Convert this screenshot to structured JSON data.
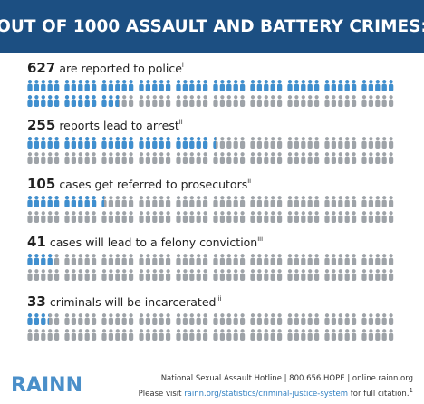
{
  "chart_data": {
    "type": "pictograph",
    "title": "OUT OF 1000 ASSAULT AND BATTERY CRIMES:",
    "total": 1000,
    "categories": [
      "are reported to police",
      "reports lead to arrest",
      "cases get referred to prosecutors",
      "cases will lead to a felony conviction",
      "criminals will be incarcerated"
    ],
    "values": [
      627,
      255,
      105,
      41,
      33
    ],
    "notes": [
      "i",
      "ii",
      "ii",
      "iii",
      "iii"
    ],
    "highlight_color": "#3f8fcf",
    "base_color": "#9ea3a8",
    "logo": "RAINN",
    "footer": {
      "hotline": "National Sexual Assault Hotline | 800.656.HOPE | online.rainn.org",
      "citation_before": "Please visit ",
      "citation_link": "rainn.org/statistics/criminal-justice-system",
      "citation_after": " for full citation.",
      "citation_note": "1"
    }
  }
}
